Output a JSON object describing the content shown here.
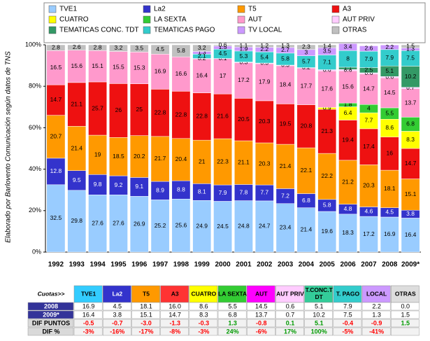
{
  "chart_data": {
    "type": "stacked-bar",
    "y_label": "Elaborado por Barlovento Comunicación según datos de TNS",
    "categories": [
      "1992",
      "1993",
      "1994",
      "1995",
      "1996",
      "1997",
      "1998",
      "1999",
      "2000",
      "2001",
      "2002",
      "2003",
      "2004",
      "2005",
      "2006",
      "2007",
      "2008",
      "2009*"
    ],
    "ylim": [
      0,
      100
    ],
    "yticks": [
      {
        "value": 0,
        "label": "0%"
      },
      {
        "value": 20,
        "label": "20%"
      },
      {
        "value": 40,
        "label": "40%"
      },
      {
        "value": 60,
        "label": "60%"
      },
      {
        "value": 80,
        "label": "80%"
      },
      {
        "value": 100,
        "label": "100%"
      }
    ],
    "series": [
      {
        "name": "TVE1",
        "color": "#99ccff",
        "values": [
          32.5,
          29.8,
          27.6,
          27.6,
          26.9,
          25.2,
          25.6,
          24.9,
          24.5,
          24.8,
          24.7,
          23.4,
          21.4,
          19.6,
          18.3,
          17.2,
          16.9,
          16.4
        ]
      },
      {
        "name": "La2",
        "color": "#3333cc",
        "values": [
          12.8,
          9.5,
          9.8,
          9.2,
          9.1,
          8.9,
          8.8,
          8.1,
          7.9,
          7.8,
          7.7,
          7.2,
          6.8,
          5.8,
          4.8,
          4.6,
          4.5,
          3.8
        ]
      },
      {
        "name": "T5",
        "color": "#ff9900",
        "values": [
          20.7,
          21.4,
          19,
          18.5,
          20.2,
          21.7,
          20.4,
          21,
          22.3,
          21.1,
          20.3,
          21.4,
          22.1,
          22.2,
          21.2,
          20.3,
          18.1,
          15.1
        ]
      },
      {
        "name": "A3",
        "color": "#ee1111",
        "values": [
          14.7,
          21.1,
          25.7,
          26,
          25,
          22.8,
          22.8,
          22.8,
          21.6,
          20.5,
          20.3,
          19.5,
          20.8,
          21.3,
          19.4,
          17.4,
          16,
          14.7
        ]
      },
      {
        "name": "CUATRO",
        "color": "#ffff00",
        "values": [
          null,
          null,
          null,
          null,
          null,
          null,
          null,
          null,
          null,
          null,
          null,
          null,
          null,
          0.9,
          6.4,
          7.7,
          8.6,
          8.3
        ]
      },
      {
        "name": "LA SEXTA",
        "color": "#33cc33",
        "values": [
          null,
          null,
          null,
          null,
          null,
          null,
          null,
          null,
          null,
          null,
          null,
          null,
          null,
          null,
          1.8,
          4,
          5.5,
          6.8
        ]
      },
      {
        "name": "AUT",
        "color": "#ff99cc",
        "values": [
          16.5,
          15.6,
          15.1,
          15.5,
          15.3,
          16.9,
          16.6,
          16.4,
          17,
          17.2,
          17.9,
          18.4,
          17.7,
          17.6,
          15.6,
          14.7,
          14.5,
          13.7
        ]
      },
      {
        "name": "AUT PRIV",
        "color": "#ffccff",
        "values": [
          null,
          null,
          null,
          null,
          null,
          null,
          null,
          0.2,
          0.1,
          0.3,
          0.3,
          0.3,
          0.2,
          0.6,
          0.6,
          0.6,
          0.6,
          0.7
        ]
      },
      {
        "name": "TEMATICAS CONC. TDT",
        "color": "#339966",
        "values": [
          null,
          null,
          null,
          null,
          null,
          null,
          null,
          null,
          null,
          null,
          null,
          null,
          null,
          null,
          1.1,
          2.5,
          5.1,
          10.2
        ]
      },
      {
        "name": "TEMATICAS PAGO",
        "color": "#33cccc",
        "values": [
          null,
          null,
          null,
          null,
          null,
          null,
          null,
          2.1,
          4.5,
          5.3,
          5.4,
          5.8,
          5.7,
          7.1,
          8,
          7.9,
          7.9,
          7.5
        ]
      },
      {
        "name": "TV LOCAL",
        "color": "#cc99ff",
        "values": [
          null,
          null,
          null,
          null,
          null,
          null,
          null,
          1.3,
          1.5,
          1.9,
          2.2,
          2.7,
          3,
          3.5,
          3.4,
          2.6,
          2.2,
          1.3
        ]
      },
      {
        "name": "OTRAS",
        "color": "#c0c0c0",
        "values": [
          2.8,
          2.6,
          2.8,
          3.2,
          3.5,
          4.5,
          5.8,
          3.2,
          0.6,
          1.1,
          1.2,
          1.3,
          2.3,
          1.4,
          null,
          null,
          0,
          1.5
        ]
      }
    ]
  },
  "table": {
    "header": [
      "Cuotas>>",
      "TVE1",
      "La2",
      "T5",
      "A3",
      "CUATRO",
      "LA SEXTA",
      "AUT",
      "AUT PRIV",
      "T.CONC.T DT",
      "T. PAGO",
      "LOCAL",
      "OTRAS"
    ],
    "rows": [
      [
        "2008",
        "16.9",
        "4.5",
        "18.1",
        "16.0",
        "8.6",
        "5.5",
        "14.5",
        "0.6",
        "5.1",
        "7.9",
        "2.2",
        "0.0"
      ],
      [
        "2009*",
        "16.4",
        "3.8",
        "15.1",
        "14.7",
        "8.3",
        "6.8",
        "13.7",
        "0.7",
        "10.2",
        "7.5",
        "1.3",
        "1.5"
      ],
      [
        "DIF PUNTOS",
        "-0.5",
        "-0.7",
        "-3.0",
        "-1.3",
        "-0.3",
        "1.3",
        "-0.8",
        "0.1",
        "5.1",
        "-0.4",
        "-0.9",
        "1.5"
      ],
      [
        "DIF %",
        "-3%",
        "-16%",
        "-17%",
        "-8%",
        "-3%",
        "24%",
        "-6%",
        "17%",
        "100%",
        "-5%",
        "-41%",
        ""
      ]
    ]
  }
}
